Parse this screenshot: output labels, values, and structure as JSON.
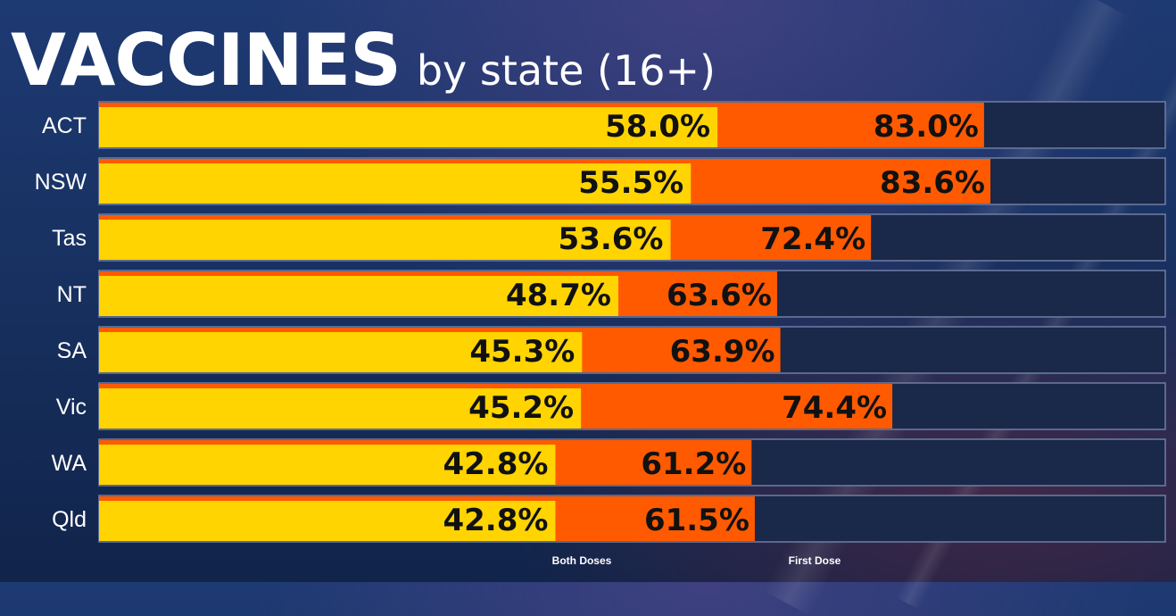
{
  "header": {
    "title": "VACCINES",
    "subtitle": "by state (16+)"
  },
  "colors": {
    "both_doses": "#ffd400",
    "first_dose": "#ff5a00",
    "track": "#1a2849",
    "track_border": "#6f7ea3"
  },
  "chart_data": {
    "type": "bar",
    "orientation": "horizontal",
    "stacked": "overlay",
    "title": "VACCINES",
    "subtitle": "by state (16+)",
    "xlim": [
      0,
      100
    ],
    "categories": [
      "ACT",
      "NSW",
      "Tas",
      "NT",
      "SA",
      "Vic",
      "WA",
      "Qld"
    ],
    "series": [
      {
        "name": "Both Doses",
        "values": [
          58.0,
          55.5,
          53.6,
          48.7,
          45.3,
          45.2,
          42.8,
          42.8
        ],
        "labels": [
          "58.0%",
          "55.5%",
          "53.6%",
          "48.7%",
          "45.3%",
          "45.2%",
          "42.8%",
          "42.8%"
        ],
        "color": "#ffd400"
      },
      {
        "name": "First Dose",
        "values": [
          83.0,
          83.6,
          72.4,
          63.6,
          63.9,
          74.4,
          61.2,
          61.5
        ],
        "labels": [
          "83.0%",
          "83.6%",
          "72.4%",
          "63.6%",
          "63.9%",
          "74.4%",
          "61.2%",
          "61.5%"
        ],
        "color": "#ff5a00"
      }
    ],
    "legend_position": "bottom",
    "grid": false
  }
}
